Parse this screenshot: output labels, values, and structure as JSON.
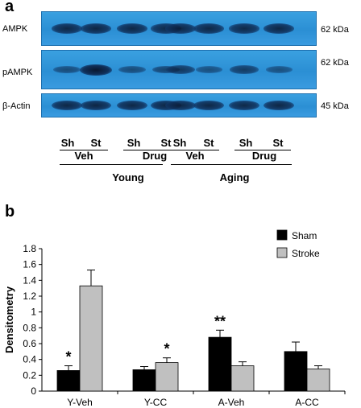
{
  "panel_a": {
    "label": "a",
    "blots": [
      {
        "name": "AMPK",
        "kda": "62 kDa",
        "intensities": [
          0.8,
          0.82,
          0.8,
          0.78,
          0.8,
          0.8,
          0.78,
          0.8
        ]
      },
      {
        "name": "pAMPK",
        "kda": "62 kDa",
        "intensities": [
          0.35,
          1.0,
          0.35,
          0.45,
          0.6,
          0.3,
          0.55,
          0.3
        ]
      },
      {
        "name": "β-Actin",
        "kda": "45 kDa",
        "intensities": [
          0.8,
          0.82,
          0.8,
          0.82,
          0.8,
          0.8,
          0.78,
          0.8
        ]
      }
    ],
    "lanes": [
      "Sh",
      "St",
      "Sh",
      "St",
      "Sh",
      "St",
      "Sh",
      "St"
    ],
    "treatments": [
      "Veh",
      "Drug",
      "Veh",
      "Drug"
    ],
    "ages": [
      "Young",
      "Aging"
    ]
  },
  "chart_data": {
    "panel_label": "b",
    "type": "bar",
    "ylabel": "Densitometry",
    "ylim": [
      0,
      1.8
    ],
    "yticks": [
      "0",
      "0.2",
      "0.4",
      "0.6",
      "0.8",
      "1",
      "1.2",
      "1.4",
      "1.6",
      "1.8"
    ],
    "categories": [
      "Y-Veh",
      "Y-CC",
      "A-Veh",
      "A-CC"
    ],
    "series": [
      {
        "name": "Sham",
        "color": "#000000",
        "values": [
          0.26,
          0.27,
          0.68,
          0.5
        ],
        "errors": [
          0.06,
          0.04,
          0.09,
          0.12
        ],
        "annotations": [
          "*",
          "",
          "**",
          ""
        ]
      },
      {
        "name": "Stroke",
        "color": "#c0c0c0",
        "values": [
          1.33,
          0.36,
          0.32,
          0.28
        ],
        "errors": [
          0.2,
          0.06,
          0.05,
          0.04
        ],
        "annotations": [
          "",
          "*",
          "",
          ""
        ]
      }
    ],
    "legend_position": "top-right"
  }
}
